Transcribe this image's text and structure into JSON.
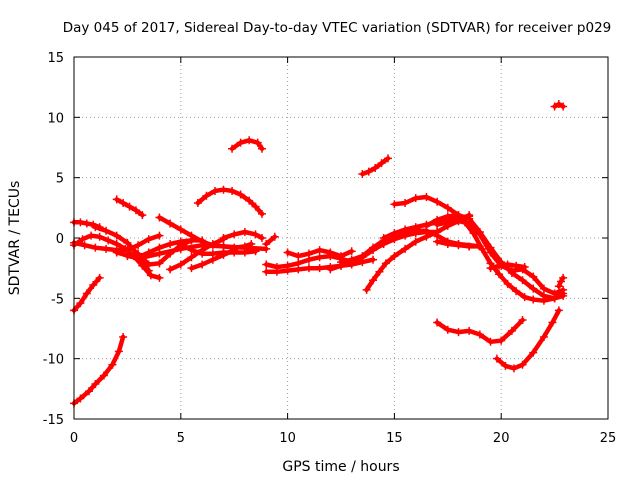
{
  "chart_data": {
    "type": "scatter",
    "title": "Day 045 of 2017, Sidereal Day-to-day VTEC variation (SDTVAR) for receiver p029",
    "xlabel": "GPS time / hours",
    "ylabel": "SDTVAR / TECUs",
    "xlim": [
      0,
      25
    ],
    "ylim": [
      -15,
      15
    ],
    "xticks": [
      0,
      5,
      10,
      15,
      20,
      25
    ],
    "yticks": [
      -15,
      -10,
      -5,
      0,
      5,
      10,
      15
    ],
    "xtick_labels": [
      "0",
      "5",
      "10",
      "15",
      "20",
      "25"
    ],
    "ytick_labels": [
      "-15",
      "-10",
      "-5",
      "0",
      "5",
      "10",
      "15"
    ],
    "grid": true,
    "marker": "+",
    "color": "#ff0000",
    "series": [
      {
        "name": "s1",
        "x": [
          0.0,
          0.3,
          0.7,
          1.0,
          1.4,
          1.8,
          2.1,
          2.3
        ],
        "y": [
          -13.7,
          -13.3,
          -12.7,
          -12.1,
          -11.4,
          -10.5,
          -9.4,
          -8.2
        ]
      },
      {
        "name": "s2",
        "x": [
          0.0,
          0.3,
          0.6,
          0.9,
          1.2
        ],
        "y": [
          -6.0,
          -5.4,
          -4.6,
          -3.9,
          -3.3
        ]
      },
      {
        "name": "s3",
        "x": [
          0.0,
          0.3,
          0.6,
          0.9,
          1.2
        ],
        "y": [
          1.3,
          1.3,
          1.2,
          1.1,
          0.9
        ]
      },
      {
        "name": "s4",
        "x": [
          0.0,
          0.4,
          0.8,
          1.2,
          1.6,
          2.0,
          2.4,
          2.8,
          3.2,
          3.6,
          4.0
        ],
        "y": [
          -0.6,
          -0.1,
          0.2,
          0.1,
          -0.2,
          -0.5,
          -0.9,
          -1.5,
          -2.3,
          -3.1,
          -3.3
        ]
      },
      {
        "name": "s5",
        "x": [
          0.0,
          0.5,
          1.0,
          1.5,
          2.0,
          2.5,
          3.0,
          3.5,
          4.0
        ],
        "y": [
          -0.4,
          -0.6,
          -0.8,
          -0.9,
          -1.0,
          -1.0,
          -0.6,
          -0.1,
          0.2
        ]
      },
      {
        "name": "s6",
        "x": [
          1.0,
          1.5,
          2.0,
          2.5,
          3.0,
          3.5
        ],
        "y": [
          0.9,
          0.6,
          0.2,
          -0.4,
          -1.4,
          -2.7
        ]
      },
      {
        "name": "s7",
        "x": [
          2.0,
          2.3,
          2.6,
          2.9,
          3.2
        ],
        "y": [
          3.2,
          2.9,
          2.6,
          2.3,
          1.9
        ]
      },
      {
        "name": "s8",
        "x": [
          2.0,
          3.0,
          4.0,
          5.0,
          6.0,
          7.0,
          8.0,
          9.0
        ],
        "y": [
          -1.2,
          -1.7,
          -1.3,
          -0.9,
          -0.6,
          -0.7,
          -0.8,
          -0.9
        ]
      },
      {
        "name": "s9",
        "x": [
          2.5,
          3.0,
          3.5,
          4.0,
          4.5,
          5.0,
          5.5,
          6.0
        ],
        "y": [
          -1.5,
          -1.6,
          -1.2,
          -0.8,
          -0.5,
          -0.3,
          -0.2,
          -0.2
        ]
      },
      {
        "name": "s10",
        "x": [
          3.0,
          3.5,
          4.0,
          4.5,
          5.0,
          5.5
        ],
        "y": [
          -1.3,
          -2.2,
          -2.1,
          -1.3,
          -0.6,
          -0.2
        ]
      },
      {
        "name": "s11",
        "x": [
          4.0,
          4.5,
          5.0,
          5.5,
          6.0,
          6.5,
          7.0,
          7.5,
          8.0,
          8.3
        ],
        "y": [
          1.7,
          1.2,
          0.7,
          0.2,
          -0.3,
          -0.6,
          -0.7,
          -0.8,
          -0.7,
          -0.5
        ]
      },
      {
        "name": "s12",
        "x": [
          4.5,
          5.0,
          5.5,
          6.0,
          6.5,
          7.0
        ],
        "y": [
          -2.6,
          -2.2,
          -1.6,
          -1.0,
          -0.5,
          -0.1
        ]
      },
      {
        "name": "s13",
        "x": [
          5.0,
          5.5,
          6.0,
          6.5,
          7.0,
          7.5,
          8.0,
          8.5
        ],
        "y": [
          -0.5,
          -1.0,
          -1.3,
          -1.3,
          -1.2,
          -1.2,
          -1.2,
          -1.1
        ]
      },
      {
        "name": "s14",
        "x": [
          5.5,
          6.0,
          6.5,
          7.0,
          7.5
        ],
        "y": [
          -2.5,
          -2.2,
          -1.8,
          -1.4,
          -1.0
        ]
      },
      {
        "name": "s15",
        "x": [
          5.8,
          6.2,
          6.6,
          7.0,
          7.4,
          7.8,
          8.2,
          8.5,
          8.8
        ],
        "y": [
          2.9,
          3.5,
          3.9,
          4.0,
          3.9,
          3.6,
          3.1,
          2.6,
          2.0
        ]
      },
      {
        "name": "s16",
        "x": [
          7.0,
          7.5,
          8.0,
          8.5,
          8.8
        ],
        "y": [
          0.0,
          0.3,
          0.5,
          0.3,
          0.0
        ]
      },
      {
        "name": "s17",
        "x": [
          7.4,
          7.8,
          8.2,
          8.6,
          8.8
        ],
        "y": [
          7.4,
          7.9,
          8.1,
          7.9,
          7.4
        ]
      },
      {
        "name": "s18",
        "x": [
          9.0,
          9.4
        ],
        "y": [
          -0.5,
          0.1
        ]
      },
      {
        "name": "s19",
        "x": [
          9.0,
          9.5,
          10.0,
          10.5,
          11.0,
          11.5,
          12.0,
          12.5,
          13.0
        ],
        "y": [
          -2.2,
          -2.4,
          -2.3,
          -2.1,
          -1.8,
          -1.6,
          -1.5,
          -1.7,
          -2.0
        ]
      },
      {
        "name": "s20",
        "x": [
          9.0,
          9.5,
          10.0,
          10.5,
          11.0,
          11.5,
          12.0,
          12.5,
          13.0,
          13.5,
          14.0
        ],
        "y": [
          -2.8,
          -2.8,
          -2.7,
          -2.6,
          -2.5,
          -2.5,
          -2.4,
          -2.3,
          -2.2,
          -2.0,
          -1.8
        ]
      },
      {
        "name": "s21",
        "x": [
          10.0,
          10.5,
          11.0,
          11.5,
          12.0,
          12.5,
          13.0
        ],
        "y": [
          -1.2,
          -1.5,
          -1.3,
          -1.0,
          -1.2,
          -1.5,
          -1.1
        ]
      },
      {
        "name": "s22",
        "x": [
          12.0,
          12.5,
          13.0,
          13.5,
          14.0,
          14.5,
          15.0,
          15.5,
          16.0,
          16.5,
          17.0
        ],
        "y": [
          -2.6,
          -2.3,
          -2.1,
          -1.6,
          -1.0,
          -0.5,
          -0.1,
          0.2,
          0.4,
          0.5,
          0.5
        ]
      },
      {
        "name": "s23",
        "x": [
          12.5,
          13.0,
          13.5,
          14.0,
          14.5,
          15.0,
          15.5,
          16.0,
          16.5,
          17.0,
          17.5,
          18.0,
          18.5
        ],
        "y": [
          -2.0,
          -1.8,
          -1.5,
          -0.8,
          -0.2,
          0.1,
          0.4,
          0.6,
          0.6,
          0.2,
          -0.3,
          -0.5,
          -0.7
        ]
      },
      {
        "name": "s24",
        "x": [
          13.5,
          13.8,
          14.1,
          14.4,
          14.7
        ],
        "y": [
          5.3,
          5.5,
          5.8,
          6.2,
          6.6
        ]
      },
      {
        "name": "s25",
        "x": [
          13.7,
          14.0,
          14.3,
          14.6,
          15.0,
          15.5,
          16.0,
          16.5,
          17.0,
          17.5,
          18.0,
          18.5
        ],
        "y": [
          -4.3,
          -3.5,
          -2.8,
          -2.1,
          -1.5,
          -0.9,
          -0.3,
          0.1,
          0.5,
          1.0,
          1.4,
          1.9
        ]
      },
      {
        "name": "s26",
        "x": [
          14.5,
          15.0,
          15.5,
          16.0,
          16.5,
          17.0,
          17.5,
          18.0,
          18.5
        ],
        "y": [
          0.0,
          0.4,
          0.7,
          0.9,
          1.1,
          1.3,
          1.5,
          1.7,
          1.8
        ]
      },
      {
        "name": "s27",
        "x": [
          15.0,
          15.5,
          16.0,
          16.5,
          17.0,
          17.5,
          18.0,
          18.3
        ],
        "y": [
          2.8,
          2.9,
          3.3,
          3.4,
          3.0,
          2.5,
          1.9,
          1.5
        ]
      },
      {
        "name": "s28",
        "x": [
          16.5,
          17.0,
          17.5,
          18.0,
          18.5,
          19.0,
          19.5,
          20.0,
          20.5,
          21.0,
          21.5,
          22.0,
          22.5,
          22.9
        ],
        "y": [
          1.0,
          1.5,
          1.8,
          1.9,
          1.6,
          0.5,
          -0.8,
          -2.0,
          -2.9,
          -3.5,
          -4.2,
          -4.8,
          -5.0,
          -4.8
        ]
      },
      {
        "name": "s29",
        "x": [
          17.0,
          17.5,
          18.0,
          18.5,
          19.0,
          19.5,
          20.0,
          20.5,
          21.0,
          21.5,
          22.0,
          22.5,
          22.9
        ],
        "y": [
          1.1,
          1.3,
          1.4,
          1.2,
          0.3,
          -1.2,
          -2.3,
          -2.7,
          -2.6,
          -3.2,
          -4.2,
          -4.6,
          -4.3
        ]
      },
      {
        "name": "s30",
        "x": [
          18.3,
          18.7,
          19.1,
          19.5,
          19.9,
          20.3,
          20.7,
          21.1,
          21.5,
          22.0,
          22.5,
          22.9
        ],
        "y": [
          1.3,
          0.4,
          -0.9,
          -2.1,
          -3.0,
          -3.8,
          -4.4,
          -4.9,
          -5.1,
          -5.2,
          -5.0,
          -4.6
        ]
      },
      {
        "name": "s31",
        "x": [
          19.5,
          19.9,
          20.3,
          20.7,
          21.1
        ],
        "y": [
          -2.5,
          -2.3,
          -2.2,
          -2.3,
          -2.4
        ]
      },
      {
        "name": "s32",
        "x": [
          17.0,
          17.5,
          18.0,
          18.5,
          19.0,
          18.0
        ],
        "y": [
          -0.3,
          -0.5,
          -0.6,
          -0.7,
          -0.7,
          -0.5
        ]
      },
      {
        "name": "s33",
        "x": [
          17.0,
          17.5,
          18.0,
          18.5,
          19.0,
          19.5,
          20.0,
          20.5,
          21.0
        ],
        "y": [
          -7.0,
          -7.6,
          -7.8,
          -7.7,
          -8.0,
          -8.6,
          -8.5,
          -7.7,
          -6.8
        ]
      },
      {
        "name": "s34",
        "x": [
          19.8,
          20.2,
          20.6,
          21.0,
          21.5,
          22.0,
          22.4,
          22.7
        ],
        "y": [
          -10.0,
          -10.6,
          -10.8,
          -10.5,
          -9.5,
          -8.2,
          -7.0,
          -6.0
        ]
      },
      {
        "name": "s35",
        "x": [
          22.5,
          22.7,
          22.9
        ],
        "y": [
          10.9,
          11.1,
          10.9
        ]
      },
      {
        "name": "s36",
        "x": [
          22.7,
          22.8,
          22.9
        ],
        "y": [
          -4.0,
          -3.6,
          -3.3
        ]
      }
    ]
  }
}
